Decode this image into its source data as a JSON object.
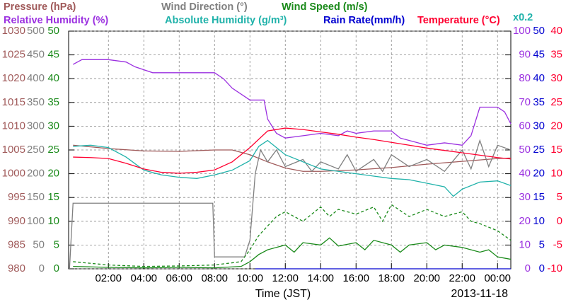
{
  "chart_data": {
    "type": "line",
    "xlabel": "Time (JST)",
    "date_label": "2013-11-18",
    "annotation": {
      "text": "x0.2",
      "color": "#20b2aa"
    },
    "grid": true,
    "xlim": [
      -0.25,
      24.75
    ],
    "xticks": [
      {
        "value": 2,
        "label": "02:00"
      },
      {
        "value": 4,
        "label": "04:00"
      },
      {
        "value": 6,
        "label": "06:00"
      },
      {
        "value": 8,
        "label": "08:00"
      },
      {
        "value": 10,
        "label": "10:00"
      },
      {
        "value": 12,
        "label": "12:00"
      },
      {
        "value": 14,
        "label": "14:00"
      },
      {
        "value": 16,
        "label": "16:00"
      },
      {
        "value": 18,
        "label": "18:00"
      },
      {
        "value": 20,
        "label": "20:00"
      },
      {
        "value": 22,
        "label": "22:00"
      },
      {
        "value": 24,
        "label": "00:00"
      }
    ],
    "axes": [
      {
        "side": "left",
        "color": "#a05a5a",
        "ylim": [
          980,
          1030
        ],
        "yticks": [
          980,
          985,
          990,
          995,
          1000,
          1005,
          1010,
          1015,
          1020,
          1025,
          1030
        ]
      },
      {
        "side": "left",
        "color": "#808080",
        "ylim": [
          0,
          500
        ],
        "yticks": [
          0,
          50,
          100,
          150,
          200,
          250,
          300,
          350,
          400,
          450,
          500
        ]
      },
      {
        "side": "left",
        "color": "#1a8a1a",
        "ylim": [
          0,
          50
        ],
        "yticks": [
          0,
          5,
          10,
          15,
          20,
          25,
          30,
          35,
          40,
          45,
          50
        ]
      },
      {
        "side": "right",
        "color": "#9b30e0",
        "ylim": [
          0,
          100
        ],
        "yticks": [
          0,
          10,
          20,
          30,
          40,
          50,
          60,
          70,
          80,
          90,
          100
        ]
      },
      {
        "side": "right",
        "color": "#0000d0",
        "ylim": [
          0,
          50
        ],
        "yticks": [
          0,
          5,
          10,
          15,
          20,
          25,
          30,
          35,
          40,
          45,
          50
        ]
      },
      {
        "side": "right",
        "color": "#ff0030",
        "ylim": [
          -10,
          40
        ],
        "yticks": [
          -10,
          -5,
          0,
          5,
          10,
          15,
          20,
          25,
          30,
          35,
          40
        ]
      },
      {
        "side": "right",
        "color": "#20b2aa",
        "ylim": [
          0,
          20
        ]
      }
    ],
    "series": [
      {
        "name": "Pressure (hPa)",
        "color": "#a05a5a",
        "axis": 0,
        "x": [
          0,
          2,
          4,
          6,
          8,
          9,
          10,
          11,
          12,
          13,
          14,
          16,
          18,
          20,
          22,
          24,
          24.75
        ],
        "values": [
          1006,
          1005.3,
          1004.8,
          1004.7,
          1005,
          1005,
          1004,
          1002.5,
          1001.2,
          1000.5,
          1000.5,
          1000.8,
          1001.3,
          1002,
          1002.6,
          1003.2,
          1003.3
        ]
      },
      {
        "name": "Wind Direction (°)",
        "color": "#808080",
        "axis": 1,
        "x": [
          -0.2,
          0,
          7.9,
          8,
          9.7,
          10,
          10.3,
          10.6,
          11,
          11.5,
          12,
          13,
          13.5,
          14,
          15,
          15.5,
          16,
          17,
          17.5,
          18,
          19,
          20,
          21,
          22,
          22.5,
          23,
          23.5,
          24,
          24.75
        ],
        "values": [
          0,
          138,
          138,
          25,
          25,
          60,
          200,
          250,
          225,
          250,
          215,
          230,
          205,
          225,
          210,
          240,
          205,
          230,
          205,
          240,
          215,
          230,
          205,
          250,
          210,
          270,
          215,
          260,
          250
        ]
      },
      {
        "name": "Wind Speed (m/s)",
        "color": "#1a8a1a",
        "axis": 2,
        "x": [
          0,
          2,
          4,
          6,
          8,
          9.5,
          10,
          10.5,
          11,
          12,
          12.5,
          13,
          14,
          14.5,
          15,
          16,
          16.5,
          17,
          18,
          18.5,
          19,
          20,
          20.5,
          21,
          22,
          23,
          23.5,
          24,
          24.75
        ],
        "values": [
          0.5,
          0.3,
          0.2,
          0.3,
          0.2,
          0.5,
          1.5,
          3,
          4,
          5,
          3.5,
          5.5,
          5,
          6.5,
          4.8,
          5.5,
          4,
          6,
          5,
          3.5,
          5,
          5.5,
          4,
          5,
          4.5,
          3.5,
          4,
          2.5,
          2
        ]
      },
      {
        "color": "#1a8a1a",
        "axis": 2,
        "dashed": true,
        "x": [
          0,
          2,
          4,
          6,
          8,
          9.5,
          10,
          10.5,
          11,
          11.5,
          12,
          13,
          14,
          14.5,
          15,
          16,
          17,
          17.5,
          18,
          19,
          20,
          21,
          22,
          22.5,
          23,
          24,
          24.75
        ],
        "values": [
          1.5,
          0.8,
          0.5,
          0.6,
          0.8,
          1.5,
          4,
          7,
          9,
          11,
          12,
          10,
          13,
          11,
          12.5,
          11.5,
          13,
          10,
          13.5,
          11,
          12.5,
          11,
          12,
          10,
          9.5,
          8,
          6
        ]
      },
      {
        "name": "Relative Humidity (%)",
        "color": "#9b30e0",
        "axis": 3,
        "x": [
          0,
          0.5,
          2,
          3,
          3.5,
          4.5,
          8,
          8.5,
          9,
          10,
          10.8,
          11,
          11.5,
          12,
          13,
          14,
          15,
          15.5,
          16,
          17,
          18,
          18.5,
          19.5,
          20,
          21,
          22,
          22.5,
          23,
          24,
          24.4,
          24.75
        ],
        "values": [
          86,
          88,
          88,
          87,
          85,
          82.5,
          82.5,
          80,
          76,
          71,
          71,
          63,
          57,
          55,
          56,
          57,
          56,
          58,
          57,
          58,
          58,
          55,
          53,
          52,
          53,
          52,
          56,
          68,
          68,
          66,
          61
        ]
      },
      {
        "name": "Absolute Humidity (g/m³)",
        "color": "#20b2aa",
        "axis": 6,
        "x": [
          0,
          1,
          2,
          3,
          4,
          5,
          6,
          7,
          8,
          9,
          10,
          10.5,
          11,
          11.5,
          12,
          13,
          14,
          15,
          16,
          17,
          18,
          19,
          20,
          21,
          21.5,
          22,
          23,
          24,
          24.75
        ],
        "values": [
          10.3,
          10.4,
          10.2,
          9.4,
          8.3,
          7.9,
          7.7,
          7.6,
          7.9,
          8.3,
          9.1,
          10.3,
          10.8,
          10.2,
          9.6,
          9,
          8.4,
          8.2,
          8,
          7.8,
          7.6,
          7.5,
          7.2,
          6.9,
          6.1,
          6.7,
          7.3,
          7.4,
          7
        ]
      },
      {
        "name": "Rain Rate(mm/h)",
        "color": "#0000d0",
        "axis": 4,
        "x": [
          10.3,
          24.75
        ],
        "values": [
          0,
          0
        ]
      },
      {
        "name": "Temperature (°C)",
        "color": "#ff0030",
        "axis": 5,
        "x": [
          0,
          1,
          2,
          3,
          4,
          5,
          6,
          7,
          8,
          9,
          10,
          11,
          12,
          13,
          14,
          15,
          16,
          17,
          18,
          19,
          20,
          21,
          22,
          23,
          24,
          24.75
        ],
        "values": [
          13.5,
          13.4,
          13.2,
          12.2,
          11,
          10.3,
          10.1,
          10.3,
          10.8,
          12.5,
          15.5,
          19,
          19.6,
          19.3,
          18.8,
          18.3,
          17.7,
          17.2,
          16.6,
          16,
          15.4,
          14.9,
          14.4,
          13.9,
          13.4,
          13.1
        ]
      }
    ]
  }
}
